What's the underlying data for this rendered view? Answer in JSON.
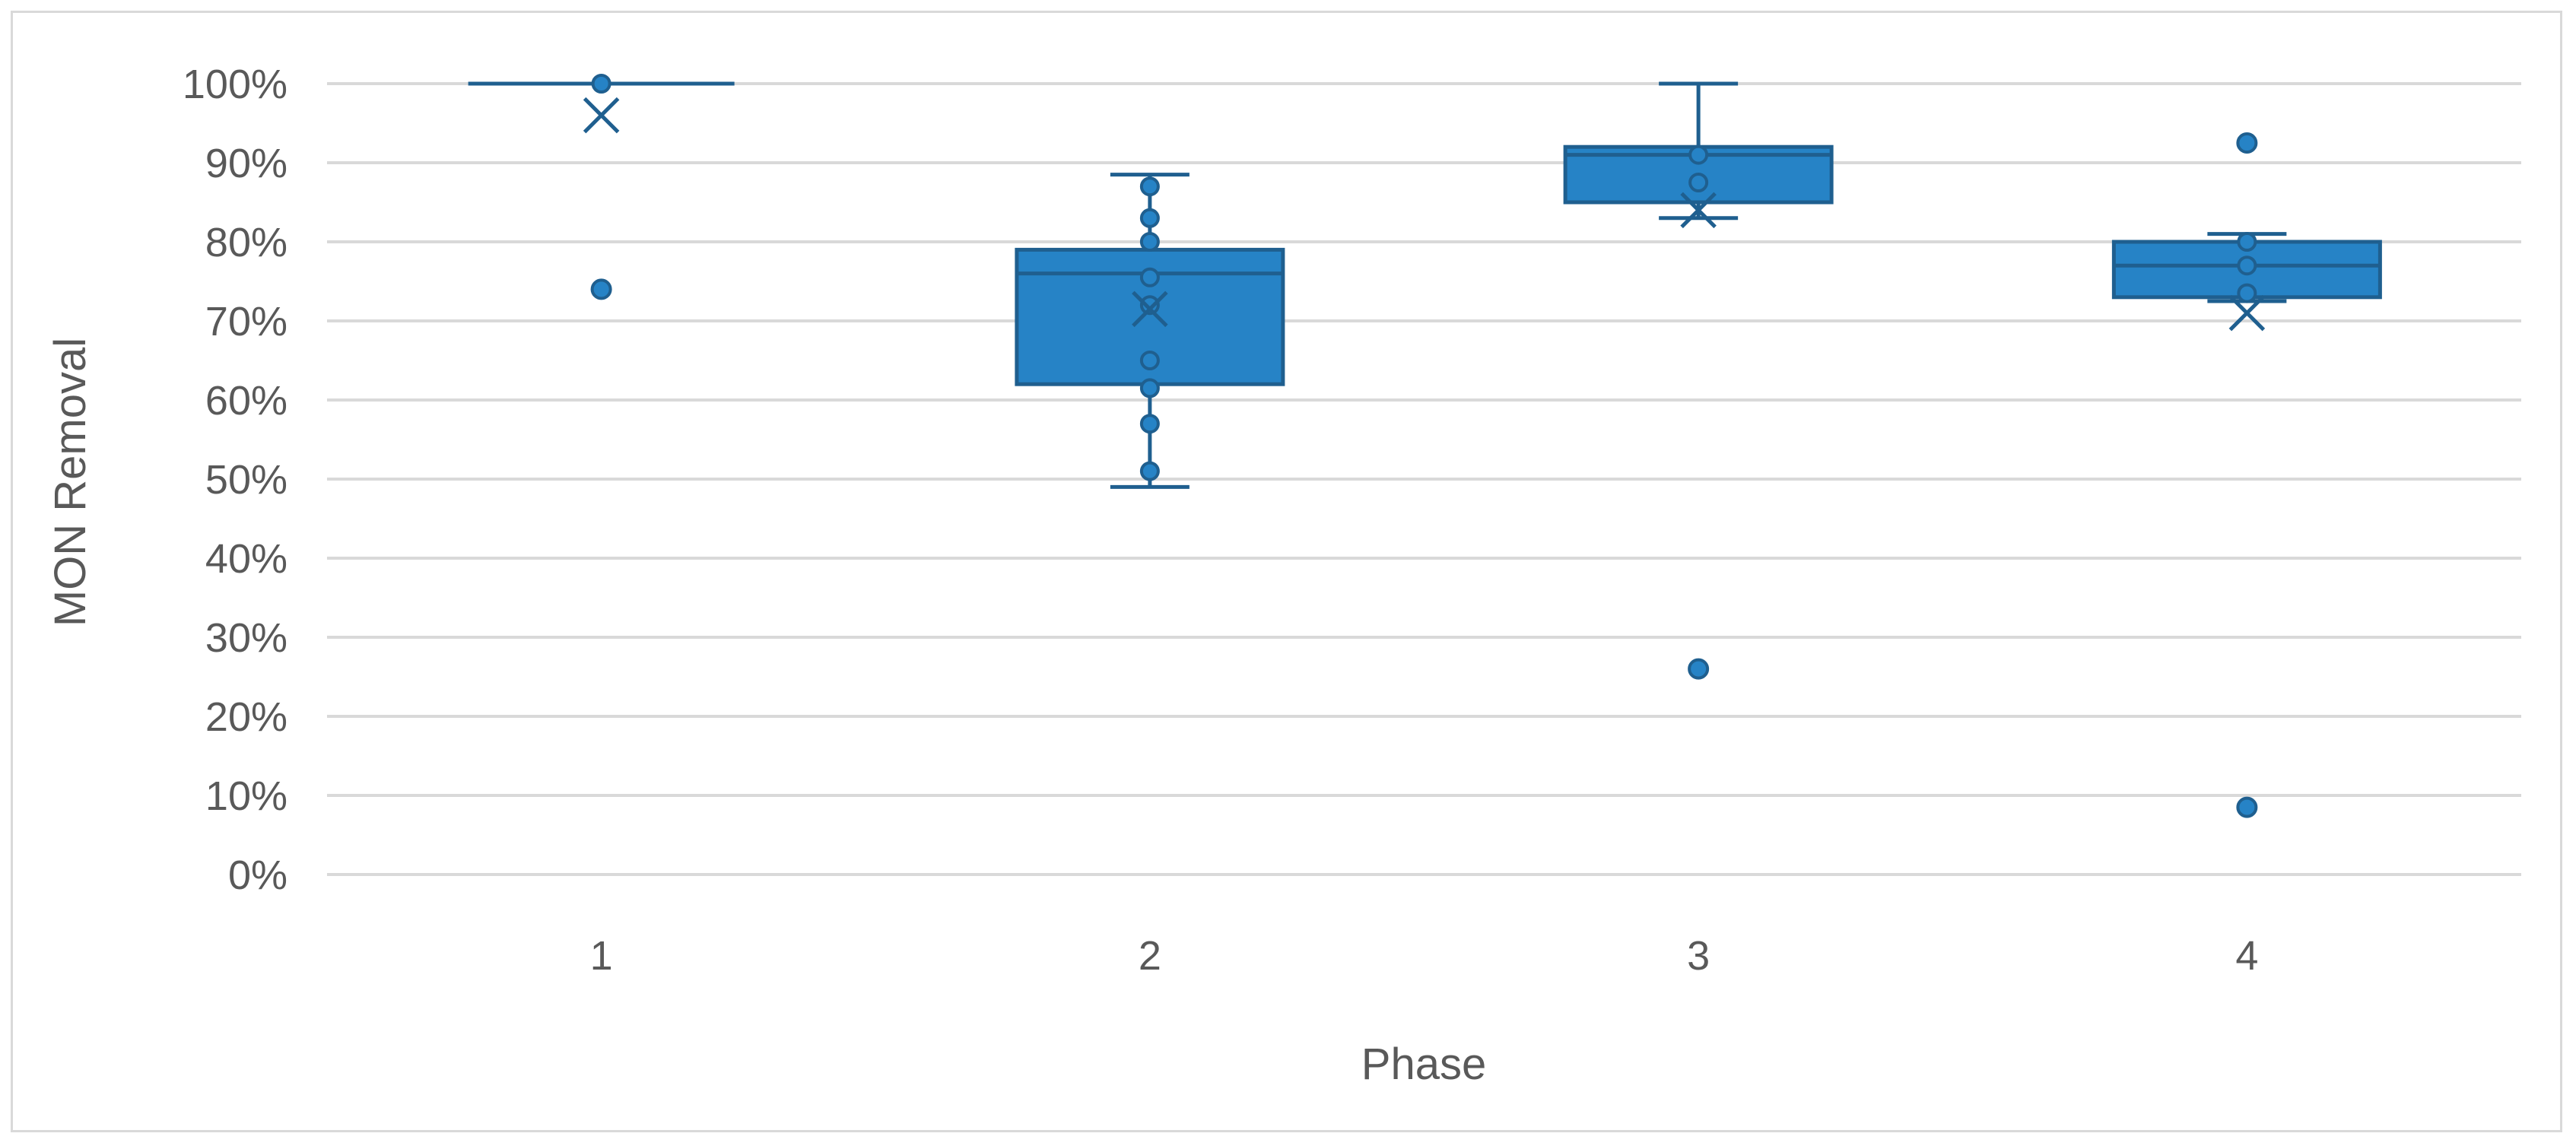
{
  "chart_data": {
    "type": "boxplot",
    "title": "",
    "xlabel": "Phase",
    "ylabel": "MON Removal",
    "ylim": [
      0,
      1
    ],
    "y_tick_labels": [
      "0%",
      "10%",
      "20%",
      "30%",
      "40%",
      "50%",
      "60%",
      "70%",
      "80%",
      "90%",
      "100%"
    ],
    "y_tick_values": [
      0,
      0.1,
      0.2,
      0.3,
      0.4,
      0.5,
      0.6,
      0.7,
      0.8,
      0.9,
      1.0
    ],
    "categories": [
      "1",
      "2",
      "3",
      "4"
    ],
    "grid": true,
    "colors": {
      "box_fill": "#2683c6",
      "box_stroke": "#1f5f8f",
      "grid": "#d9d9d9",
      "text": "#595959"
    },
    "boxes": [
      {
        "category": "1",
        "whisker_low": 1.0,
        "q1": 1.0,
        "median": 1.0,
        "q3": 1.0,
        "whisker_high": 1.0,
        "mean": 0.96,
        "points": [
          1.0
        ],
        "outliers": [
          0.74
        ]
      },
      {
        "category": "2",
        "whisker_low": 0.49,
        "q1": 0.62,
        "median": 0.76,
        "q3": 0.79,
        "whisker_high": 0.885,
        "mean": 0.715,
        "points": [
          0.51,
          0.57,
          0.615,
          0.65,
          0.72,
          0.755,
          0.8,
          0.83,
          0.87
        ],
        "outliers": []
      },
      {
        "category": "3",
        "whisker_low": 0.83,
        "q1": 0.85,
        "median": 0.91,
        "q3": 0.92,
        "whisker_high": 1.0,
        "mean": 0.84,
        "points": [
          0.875,
          0.91
        ],
        "outliers": [
          0.26
        ]
      },
      {
        "category": "4",
        "whisker_low": 0.725,
        "q1": 0.73,
        "median": 0.77,
        "q3": 0.8,
        "whisker_high": 0.81,
        "mean": 0.71,
        "points": [
          0.735,
          0.77,
          0.8
        ],
        "outliers": [
          0.925,
          0.085
        ]
      }
    ]
  }
}
